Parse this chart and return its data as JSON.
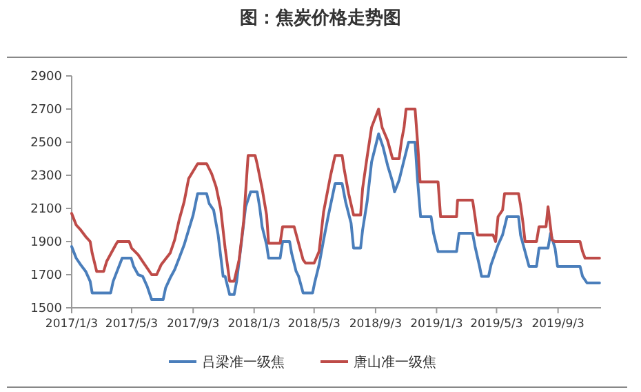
{
  "chart_data": {
    "type": "line",
    "title": "图：焦炭价格走势图",
    "xlim": [
      "2017-01-03",
      "2019-11-28"
    ],
    "xticks": [
      {
        "value": "2017-01-03",
        "label": "2017/1/3"
      },
      {
        "value": "2017-05-03",
        "label": "2017/5/3"
      },
      {
        "value": "2017-09-03",
        "label": "2017/9/3"
      },
      {
        "value": "2018-01-03",
        "label": "2018/1/3"
      },
      {
        "value": "2018-05-03",
        "label": "2018/5/3"
      },
      {
        "value": "2018-09-03",
        "label": "2018/9/3"
      },
      {
        "value": "2019-01-03",
        "label": "2019/1/3"
      },
      {
        "value": "2019-05-03",
        "label": "2019/5/3"
      },
      {
        "value": "2019-09-03",
        "label": "2019/9/3"
      }
    ],
    "ylim": [
      1500,
      2900
    ],
    "yticks": [
      1500,
      1700,
      1900,
      2100,
      2300,
      2500,
      2700,
      2900
    ],
    "grid": false,
    "legend": "bottom",
    "marker": "none",
    "line_style": "solid",
    "series": [
      {
        "name": "吕梁准一级焦",
        "color": "#4a7ebb",
        "x": [
          "2017-01-03",
          "2017-01-12",
          "2017-01-21",
          "2017-01-31",
          "2017-02-09",
          "2017-02-13",
          "2017-03-22",
          "2017-03-27",
          "2017-04-05",
          "2017-04-14",
          "2017-05-02",
          "2017-05-07",
          "2017-05-16",
          "2017-05-25",
          "2017-06-03",
          "2017-06-12",
          "2017-07-05",
          "2017-07-10",
          "2017-07-19",
          "2017-07-28",
          "2017-08-06",
          "2017-08-16",
          "2017-08-25",
          "2017-09-03",
          "2017-09-12",
          "2017-09-30",
          "2017-10-05",
          "2017-10-14",
          "2017-10-23",
          "2017-11-02",
          "2017-11-06",
          "2017-11-15",
          "2017-11-24",
          "2017-11-29",
          "2017-12-08",
          "2017-12-17",
          "2017-12-27",
          "2018-01-09",
          "2018-01-14",
          "2018-01-19",
          "2018-01-28",
          "2018-02-01",
          "2018-02-24",
          "2018-03-01",
          "2018-03-15",
          "2018-03-19",
          "2018-03-28",
          "2018-04-02",
          "2018-04-11",
          "2018-04-30",
          "2018-05-04",
          "2018-05-13",
          "2018-05-22",
          "2018-05-31",
          "2018-06-14",
          "2018-06-28",
          "2018-07-05",
          "2018-07-16",
          "2018-07-21",
          "2018-08-04",
          "2018-08-08",
          "2018-08-17",
          "2018-08-26",
          "2018-09-09",
          "2018-09-18",
          "2018-09-27",
          "2018-10-07",
          "2018-10-11",
          "2018-10-20",
          "2018-10-29",
          "2018-11-08",
          "2018-11-21",
          "2018-11-26",
          "2018-12-02",
          "2018-12-23",
          "2018-12-28",
          "2019-01-06",
          "2019-02-12",
          "2019-02-17",
          "2019-03-16",
          "2019-03-21",
          "2019-03-30",
          "2019-04-03",
          "2019-04-17",
          "2019-04-22",
          "2019-05-06",
          "2019-05-15",
          "2019-05-24",
          "2019-06-16",
          "2019-06-20",
          "2019-06-29",
          "2019-07-07",
          "2019-07-22",
          "2019-07-27",
          "2019-08-14",
          "2019-08-19",
          "2019-08-28",
          "2019-09-02",
          "2019-10-17",
          "2019-10-22",
          "2019-10-31",
          "2019-11-25"
        ],
        "values": [
          1870,
          1800,
          1760,
          1720,
          1660,
          1590,
          1590,
          1660,
          1730,
          1800,
          1800,
          1750,
          1700,
          1690,
          1630,
          1550,
          1550,
          1620,
          1680,
          1730,
          1800,
          1880,
          1970,
          2060,
          2190,
          2190,
          2130,
          2090,
          1940,
          1690,
          1690,
          1580,
          1580,
          1660,
          1880,
          2110,
          2200,
          2200,
          2110,
          1990,
          1880,
          1800,
          1800,
          1900,
          1900,
          1830,
          1720,
          1690,
          1590,
          1590,
          1650,
          1760,
          1910,
          2050,
          2250,
          2250,
          2140,
          2010,
          1860,
          1860,
          1970,
          2140,
          2380,
          2550,
          2470,
          2360,
          2260,
          2200,
          2270,
          2380,
          2500,
          2500,
          2270,
          2050,
          2050,
          1950,
          1840,
          1840,
          1950,
          1950,
          1870,
          1750,
          1690,
          1690,
          1760,
          1880,
          1940,
          2050,
          2050,
          1940,
          1840,
          1750,
          1750,
          1860,
          1860,
          1950,
          1860,
          1750,
          1750,
          1690,
          1650,
          1650
        ]
      },
      {
        "name": "唐山准一级焦",
        "color": "#be4b48",
        "x": [
          "2017-01-03",
          "2017-01-12",
          "2017-01-21",
          "2017-01-31",
          "2017-02-09",
          "2017-02-13",
          "2017-02-22",
          "2017-03-08",
          "2017-03-14",
          "2017-03-23",
          "2017-04-01",
          "2017-04-05",
          "2017-04-28",
          "2017-05-03",
          "2017-05-16",
          "2017-05-25",
          "2017-06-03",
          "2017-06-12",
          "2017-06-22",
          "2017-07-01",
          "2017-07-19",
          "2017-07-28",
          "2017-08-06",
          "2017-08-16",
          "2017-08-25",
          "2017-09-12",
          "2017-09-30",
          "2017-10-10",
          "2017-10-19",
          "2017-10-28",
          "2017-11-06",
          "2017-11-15",
          "2017-11-24",
          "2017-12-04",
          "2017-12-13",
          "2017-12-22",
          "2018-01-05",
          "2018-01-09",
          "2018-01-19",
          "2018-01-28",
          "2018-02-01",
          "2018-02-24",
          "2018-03-01",
          "2018-03-24",
          "2018-04-02",
          "2018-04-11",
          "2018-04-16",
          "2018-05-03",
          "2018-05-13",
          "2018-05-22",
          "2018-06-05",
          "2018-06-14",
          "2018-06-28",
          "2018-07-02",
          "2018-07-11",
          "2018-07-21",
          "2018-08-04",
          "2018-08-08",
          "2018-08-17",
          "2018-08-26",
          "2018-09-09",
          "2018-09-16",
          "2018-09-27",
          "2018-10-07",
          "2018-10-20",
          "2018-10-25",
          "2018-10-30",
          "2018-11-03",
          "2018-11-21",
          "2018-11-26",
          "2018-12-01",
          "2019-01-06",
          "2019-01-11",
          "2019-02-12",
          "2019-02-14",
          "2019-03-16",
          "2019-03-21",
          "2019-03-26",
          "2019-04-26",
          "2019-05-01",
          "2019-05-06",
          "2019-05-15",
          "2019-05-19",
          "2019-06-16",
          "2019-06-20",
          "2019-06-25",
          "2019-06-29",
          "2019-07-22",
          "2019-07-27",
          "2019-08-10",
          "2019-08-14",
          "2019-08-22",
          "2019-08-28",
          "2019-10-17",
          "2019-10-22",
          "2019-10-27",
          "2019-11-25"
        ],
        "values": [
          2070,
          2000,
          1970,
          1930,
          1900,
          1830,
          1720,
          1720,
          1780,
          1830,
          1880,
          1900,
          1900,
          1860,
          1820,
          1780,
          1740,
          1700,
          1700,
          1760,
          1830,
          1910,
          2030,
          2140,
          2280,
          2370,
          2370,
          2310,
          2230,
          2100,
          1860,
          1660,
          1660,
          1790,
          2020,
          2420,
          2420,
          2370,
          2220,
          2060,
          1890,
          1890,
          1990,
          1990,
          1890,
          1790,
          1770,
          1770,
          1840,
          2080,
          2300,
          2420,
          2420,
          2340,
          2190,
          2060,
          2060,
          2220,
          2410,
          2590,
          2700,
          2590,
          2510,
          2400,
          2400,
          2510,
          2590,
          2700,
          2700,
          2500,
          2260,
          2260,
          2050,
          2050,
          2150,
          2150,
          2050,
          1940,
          1940,
          1900,
          2050,
          2090,
          2190,
          2190,
          2120,
          2010,
          1900,
          1900,
          1990,
          1990,
          2110,
          1910,
          1900,
          1900,
          1840,
          1800,
          1800
        ]
      }
    ]
  }
}
